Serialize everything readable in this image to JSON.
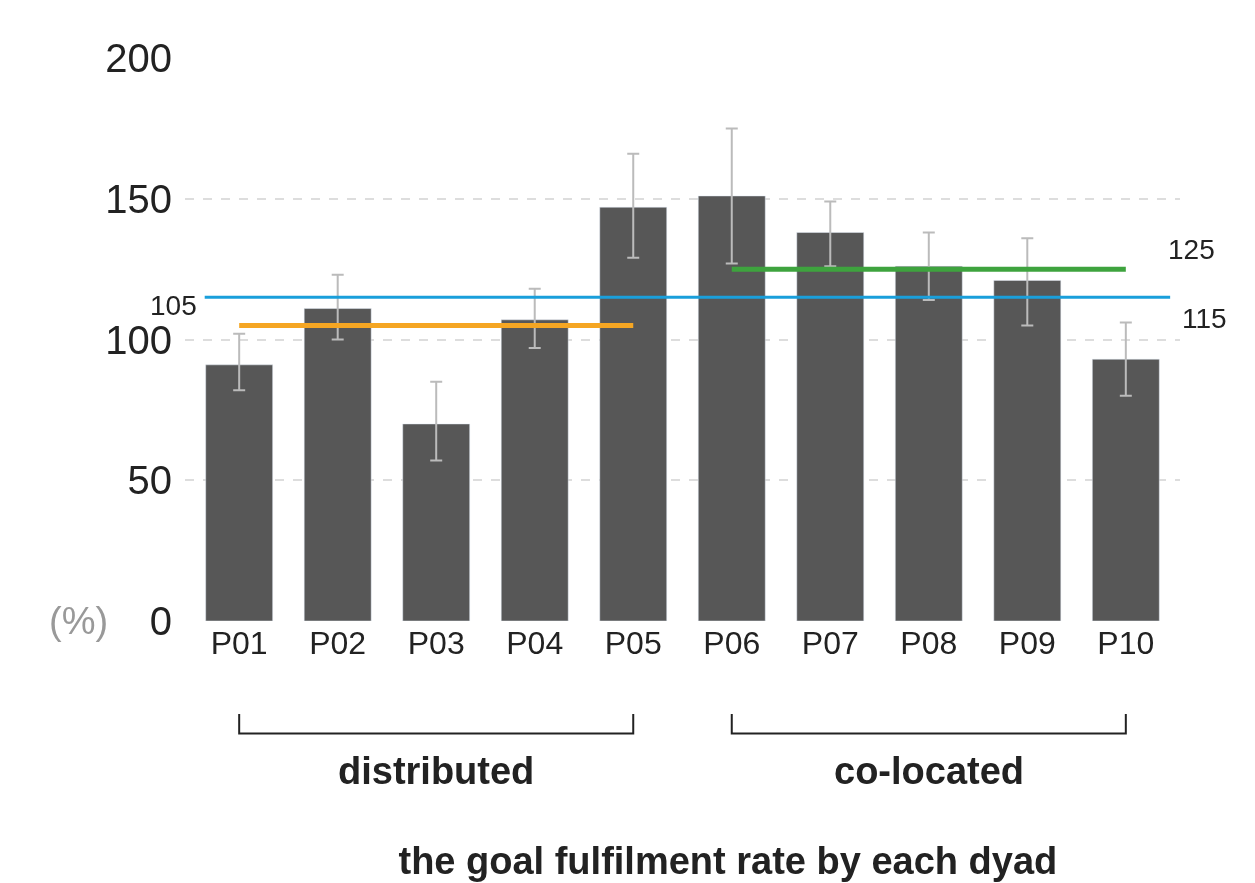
{
  "chart_data": {
    "type": "bar",
    "title": "the goal fulfilment rate by each dyad",
    "ylabel": "(%)",
    "categories": [
      "P01",
      "P02",
      "P03",
      "P04",
      "P05",
      "P06",
      "P07",
      "P08",
      "P09",
      "P10"
    ],
    "series": [
      {
        "color": "#575757",
        "values": [
          91,
          111,
          70,
          107,
          147,
          151,
          138,
          126,
          121,
          93
        ],
        "errors": [
          [
            82,
            102
          ],
          [
            100,
            123
          ],
          [
            57,
            85
          ],
          [
            97,
            118
          ],
          [
            129,
            166
          ],
          [
            127,
            175
          ],
          [
            126,
            149
          ],
          [
            114,
            138
          ],
          [
            105,
            136
          ],
          [
            80,
            106
          ]
        ]
      },
      {
        "type": "line",
        "color": "#f5a623",
        "values": [
          105,
          105,
          105,
          105,
          105,
          null,
          null,
          null,
          null,
          null
        ]
      },
      {
        "type": "line",
        "color": "#3ea33e",
        "values": [
          null,
          null,
          null,
          null,
          null,
          125,
          125,
          125,
          125,
          125
        ]
      }
    ],
    "ref_lines": [
      {
        "axis": "y",
        "value": 115,
        "label": "115",
        "color": "#1a9fdb"
      }
    ],
    "annotations": [
      {
        "text": "105",
        "x": "P01",
        "y": 105
      },
      {
        "text": "125",
        "x": "P10",
        "y": 125
      },
      "distributed",
      "co-located"
    ],
    "ylim": [
      0,
      200
    ],
    "yticks": [
      0,
      50,
      100,
      150,
      200
    ],
    "grid": "y",
    "legend": false
  }
}
